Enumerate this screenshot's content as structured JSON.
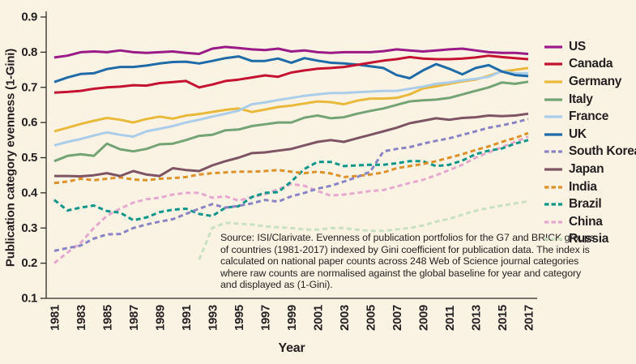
{
  "figure": {
    "background_color": "#faf3e3",
    "text_color": "#231f20",
    "axis_color": "#2e2a26",
    "source_note": {
      "lines": [
        "Source: ISI/Clarivate. Evenness of publication portfolios for the G7 and BRICK groups",
        "of countries (1981-2017) indexed by Gini coefficient for publication data. The index is",
        "calculated on national paper counts across 248 Web of Science journal categories",
        "where raw counts are normalised against the global baseline for year and category",
        "and displayed as (1-Gini)."
      ]
    }
  },
  "chart_data": {
    "type": "line",
    "title": "",
    "xlabel": "Year",
    "ylabel": "Publication category evenness (1-Gini)",
    "ylim": [
      0.1,
      0.9
    ],
    "xlim": [
      1981,
      2017
    ],
    "grid": false,
    "legend_position": "right",
    "ytick_labels": [
      "0.9",
      "0.8",
      "0.7",
      "0.6",
      "0.5",
      "0.4",
      "0.3",
      "0.2",
      "0.1"
    ],
    "ytick_values": [
      0.9,
      0.8,
      0.7,
      0.6,
      0.5,
      0.4,
      0.3,
      0.2,
      0.1
    ],
    "xtick_labels": [
      "1981",
      "1983",
      "1985",
      "1987",
      "1989",
      "1991",
      "1993",
      "1995",
      "1997",
      "1999",
      "2001",
      "2003",
      "2005",
      "2007",
      "2009",
      "2011",
      "2013",
      "2015",
      "2017"
    ],
    "x": [
      1981,
      1982,
      1983,
      1984,
      1985,
      1986,
      1987,
      1988,
      1989,
      1990,
      1991,
      1992,
      1993,
      1994,
      1995,
      1996,
      1997,
      1998,
      1999,
      2000,
      2001,
      2002,
      2003,
      2004,
      2005,
      2006,
      2007,
      2008,
      2009,
      2010,
      2011,
      2012,
      2013,
      2014,
      2015,
      2016,
      2017
    ],
    "series": [
      {
        "name": "US",
        "color": "#9a1b87",
        "style": "solid",
        "values": [
          0.785,
          0.79,
          0.8,
          0.802,
          0.8,
          0.805,
          0.8,
          0.798,
          0.8,
          0.802,
          0.798,
          0.795,
          0.81,
          0.815,
          0.812,
          0.808,
          0.806,
          0.81,
          0.802,
          0.805,
          0.8,
          0.798,
          0.8,
          0.8,
          0.8,
          0.803,
          0.808,
          0.805,
          0.802,
          0.805,
          0.808,
          0.81,
          0.805,
          0.8,
          0.798,
          0.798,
          0.795
        ]
      },
      {
        "name": "Canada",
        "color": "#c41230",
        "style": "solid",
        "values": [
          0.685,
          0.687,
          0.69,
          0.696,
          0.7,
          0.702,
          0.706,
          0.705,
          0.712,
          0.715,
          0.718,
          0.7,
          0.708,
          0.718,
          0.722,
          0.728,
          0.734,
          0.73,
          0.742,
          0.748,
          0.753,
          0.755,
          0.758,
          0.764,
          0.77,
          0.776,
          0.78,
          0.786,
          0.782,
          0.78,
          0.78,
          0.782,
          0.785,
          0.79,
          0.786,
          0.783,
          0.78
        ]
      },
      {
        "name": "Germany",
        "color": "#e9b93c",
        "style": "solid",
        "values": [
          0.575,
          0.585,
          0.596,
          0.605,
          0.613,
          0.608,
          0.6,
          0.61,
          0.617,
          0.611,
          0.62,
          0.624,
          0.63,
          0.636,
          0.64,
          0.63,
          0.637,
          0.644,
          0.648,
          0.654,
          0.66,
          0.658,
          0.652,
          0.662,
          0.668,
          0.668,
          0.67,
          0.68,
          0.697,
          0.703,
          0.71,
          0.717,
          0.722,
          0.733,
          0.745,
          0.75,
          0.755
        ]
      },
      {
        "name": "Italy",
        "color": "#74a374",
        "style": "solid",
        "values": [
          0.49,
          0.505,
          0.51,
          0.505,
          0.54,
          0.524,
          0.518,
          0.525,
          0.538,
          0.54,
          0.55,
          0.562,
          0.565,
          0.578,
          0.58,
          0.59,
          0.595,
          0.6,
          0.6,
          0.614,
          0.62,
          0.612,
          0.615,
          0.625,
          0.633,
          0.64,
          0.65,
          0.66,
          0.663,
          0.665,
          0.67,
          0.68,
          0.69,
          0.7,
          0.714,
          0.71,
          0.716
        ]
      },
      {
        "name": "France",
        "color": "#abcde9",
        "style": "solid",
        "values": [
          0.535,
          0.545,
          0.553,
          0.563,
          0.572,
          0.565,
          0.56,
          0.575,
          0.582,
          0.59,
          0.6,
          0.608,
          0.617,
          0.625,
          0.634,
          0.652,
          0.657,
          0.664,
          0.67,
          0.676,
          0.68,
          0.684,
          0.684,
          0.686,
          0.688,
          0.69,
          0.69,
          0.696,
          0.702,
          0.71,
          0.714,
          0.72,
          0.724,
          0.73,
          0.746,
          0.74,
          0.74
        ]
      },
      {
        "name": "UK",
        "color": "#1f6ba8",
        "style": "solid",
        "values": [
          0.715,
          0.728,
          0.738,
          0.74,
          0.752,
          0.758,
          0.758,
          0.762,
          0.768,
          0.772,
          0.773,
          0.768,
          0.775,
          0.783,
          0.788,
          0.775,
          0.775,
          0.782,
          0.77,
          0.783,
          0.776,
          0.77,
          0.768,
          0.765,
          0.76,
          0.755,
          0.735,
          0.726,
          0.748,
          0.766,
          0.753,
          0.737,
          0.755,
          0.763,
          0.745,
          0.735,
          0.732
        ]
      },
      {
        "name": "South Korea",
        "color": "#8b84c4",
        "style": "dashed",
        "values": [
          0.235,
          0.243,
          0.25,
          0.27,
          0.282,
          0.283,
          0.3,
          0.31,
          0.318,
          0.325,
          0.34,
          0.355,
          0.368,
          0.358,
          0.363,
          0.37,
          0.38,
          0.375,
          0.39,
          0.4,
          0.412,
          0.42,
          0.432,
          0.445,
          0.46,
          0.518,
          0.525,
          0.53,
          0.54,
          0.548,
          0.555,
          0.565,
          0.575,
          0.585,
          0.592,
          0.6,
          0.61
        ]
      },
      {
        "name": "Japan",
        "color": "#7e5464",
        "style": "solid",
        "values": [
          0.448,
          0.448,
          0.447,
          0.45,
          0.456,
          0.448,
          0.462,
          0.452,
          0.448,
          0.47,
          0.465,
          0.462,
          0.478,
          0.49,
          0.5,
          0.513,
          0.515,
          0.52,
          0.525,
          0.535,
          0.545,
          0.55,
          0.545,
          0.555,
          0.565,
          0.575,
          0.585,
          0.598,
          0.605,
          0.612,
          0.608,
          0.613,
          0.615,
          0.62,
          0.618,
          0.62,
          0.625
        ]
      },
      {
        "name": "India",
        "color": "#de9128",
        "style": "dashed",
        "values": [
          0.428,
          0.432,
          0.44,
          0.436,
          0.44,
          0.444,
          0.438,
          0.436,
          0.44,
          0.442,
          0.445,
          0.452,
          0.456,
          0.458,
          0.46,
          0.46,
          0.462,
          0.465,
          0.46,
          0.456,
          0.46,
          0.455,
          0.445,
          0.448,
          0.452,
          0.458,
          0.47,
          0.476,
          0.482,
          0.49,
          0.5,
          0.51,
          0.522,
          0.532,
          0.545,
          0.556,
          0.57
        ]
      },
      {
        "name": "Brazil",
        "color": "#0c968a",
        "style": "dashed",
        "values": [
          0.38,
          0.35,
          0.358,
          0.364,
          0.348,
          0.344,
          0.322,
          0.33,
          0.345,
          0.352,
          0.355,
          0.34,
          0.334,
          0.358,
          0.362,
          0.388,
          0.4,
          0.402,
          0.432,
          0.468,
          0.488,
          0.488,
          0.476,
          0.478,
          0.48,
          0.48,
          0.484,
          0.49,
          0.49,
          0.476,
          0.48,
          0.492,
          0.51,
          0.52,
          0.526,
          0.54,
          0.55
        ]
      },
      {
        "name": "China",
        "color": "#e5a8ce",
        "style": "dashed",
        "values": [
          0.2,
          0.23,
          0.258,
          0.3,
          0.335,
          0.355,
          0.372,
          0.382,
          0.386,
          0.395,
          0.4,
          0.4,
          0.386,
          0.39,
          0.378,
          0.388,
          0.396,
          0.41,
          0.425,
          0.42,
          0.405,
          0.392,
          0.395,
          0.4,
          0.405,
          0.408,
          0.418,
          0.428,
          0.437,
          0.45,
          0.465,
          0.48,
          0.5,
          0.515,
          0.53,
          0.545,
          0.56
        ]
      },
      {
        "name": "Russia",
        "color": "#c8e0c3",
        "style": "dashed",
        "values": [
          null,
          null,
          null,
          null,
          null,
          null,
          null,
          null,
          null,
          null,
          null,
          0.21,
          0.3,
          0.315,
          0.312,
          0.31,
          0.305,
          0.302,
          0.3,
          0.296,
          0.295,
          0.3,
          0.3,
          0.295,
          0.292,
          0.292,
          0.296,
          0.3,
          0.307,
          0.318,
          0.326,
          0.338,
          0.349,
          0.357,
          0.364,
          0.37,
          0.376
        ]
      }
    ]
  }
}
